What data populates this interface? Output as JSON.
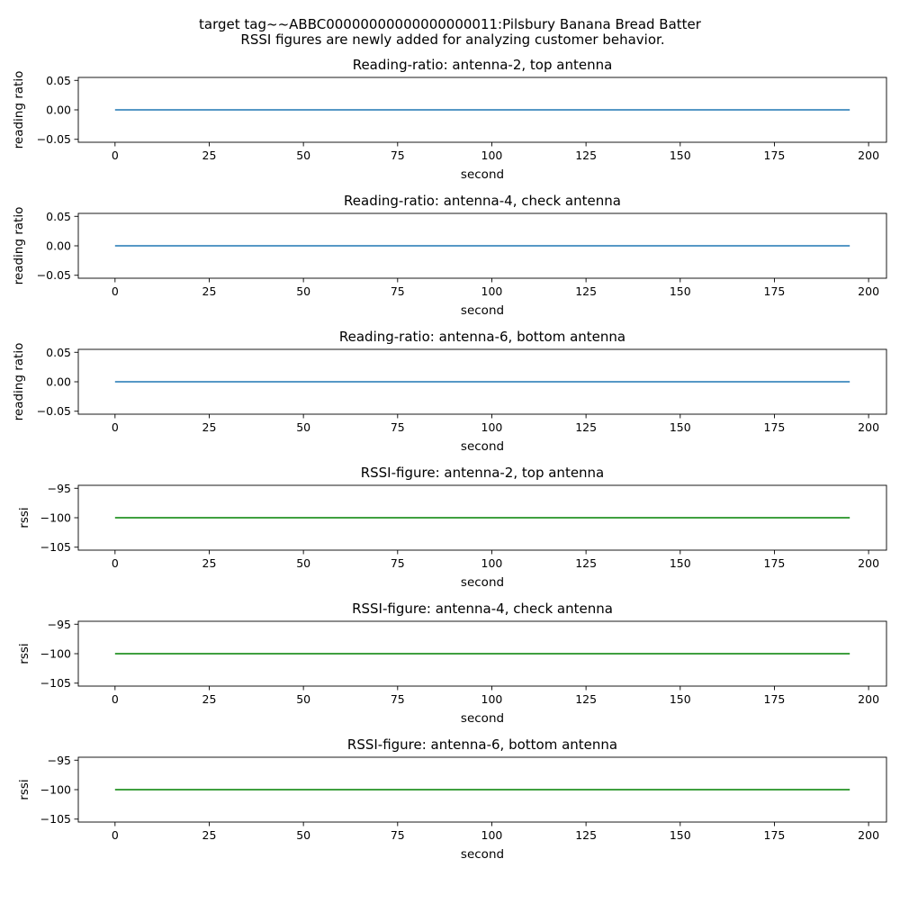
{
  "figure": {
    "suptitle_line1": "target tag~~ABBC00000000000000000011:Pilsbury Banana Bread Batter",
    "suptitle_line2": "RSSI figures are newly added for analyzing customer behavior."
  },
  "chart_data": [
    {
      "type": "line",
      "title": "Reading-ratio: antenna-2, top antenna",
      "xlabel": "second",
      "ylabel": "reading ratio",
      "xlim": [
        -9.75,
        204.75
      ],
      "ylim": [
        -0.055,
        0.055
      ],
      "xticks": [
        0,
        25,
        50,
        75,
        100,
        125,
        150,
        175,
        200
      ],
      "yticks": [
        0.05,
        0.0,
        -0.05
      ],
      "ytick_labels": [
        "0.05",
        "0.00",
        "−0.05"
      ],
      "grid": false,
      "series": [
        {
          "x": [
            0,
            195
          ],
          "y": [
            0.0,
            0.0
          ],
          "color": "#1f77b4"
        }
      ]
    },
    {
      "type": "line",
      "title": "Reading-ratio: antenna-4, check antenna",
      "xlabel": "second",
      "ylabel": "reading ratio",
      "xlim": [
        -9.75,
        204.75
      ],
      "ylim": [
        -0.055,
        0.055
      ],
      "xticks": [
        0,
        25,
        50,
        75,
        100,
        125,
        150,
        175,
        200
      ],
      "yticks": [
        0.05,
        0.0,
        -0.05
      ],
      "ytick_labels": [
        "0.05",
        "0.00",
        "−0.05"
      ],
      "grid": false,
      "series": [
        {
          "x": [
            0,
            195
          ],
          "y": [
            0.0,
            0.0
          ],
          "color": "#1f77b4"
        }
      ]
    },
    {
      "type": "line",
      "title": "Reading-ratio: antenna-6, bottom antenna",
      "xlabel": "second",
      "ylabel": "reading ratio",
      "xlim": [
        -9.75,
        204.75
      ],
      "ylim": [
        -0.055,
        0.055
      ],
      "xticks": [
        0,
        25,
        50,
        75,
        100,
        125,
        150,
        175,
        200
      ],
      "yticks": [
        0.05,
        0.0,
        -0.05
      ],
      "ytick_labels": [
        "0.05",
        "0.00",
        "−0.05"
      ],
      "grid": false,
      "series": [
        {
          "x": [
            0,
            195
          ],
          "y": [
            0.0,
            0.0
          ],
          "color": "#1f77b4"
        }
      ]
    },
    {
      "type": "line",
      "title": "RSSI-figure: antenna-2, top antenna",
      "xlabel": "second",
      "ylabel": "rssi",
      "xlim": [
        -9.75,
        204.75
      ],
      "ylim": [
        -105.5,
        -94.5
      ],
      "xticks": [
        0,
        25,
        50,
        75,
        100,
        125,
        150,
        175,
        200
      ],
      "yticks": [
        -95,
        -100,
        -105
      ],
      "ytick_labels": [
        "−95",
        "−100",
        "−105"
      ],
      "grid": false,
      "series": [
        {
          "x": [
            0,
            195
          ],
          "y": [
            -100,
            -100
          ],
          "color": "#008000"
        }
      ]
    },
    {
      "type": "line",
      "title": "RSSI-figure: antenna-4, check antenna",
      "xlabel": "second",
      "ylabel": "rssi",
      "xlim": [
        -9.75,
        204.75
      ],
      "ylim": [
        -105.5,
        -94.5
      ],
      "xticks": [
        0,
        25,
        50,
        75,
        100,
        125,
        150,
        175,
        200
      ],
      "yticks": [
        -95,
        -100,
        -105
      ],
      "ytick_labels": [
        "−95",
        "−100",
        "−105"
      ],
      "grid": false,
      "series": [
        {
          "x": [
            0,
            195
          ],
          "y": [
            -100,
            -100
          ],
          "color": "#008000"
        }
      ]
    },
    {
      "type": "line",
      "title": "RSSI-figure: antenna-6, bottom antenna",
      "xlabel": "second",
      "ylabel": "rssi",
      "xlim": [
        -9.75,
        204.75
      ],
      "ylim": [
        -105.5,
        -94.5
      ],
      "xticks": [
        0,
        25,
        50,
        75,
        100,
        125,
        150,
        175,
        200
      ],
      "yticks": [
        -95,
        -100,
        -105
      ],
      "ytick_labels": [
        "−95",
        "−100",
        "−105"
      ],
      "grid": false,
      "series": [
        {
          "x": [
            0,
            195
          ],
          "y": [
            -100,
            -100
          ],
          "color": "#008000"
        }
      ]
    }
  ]
}
